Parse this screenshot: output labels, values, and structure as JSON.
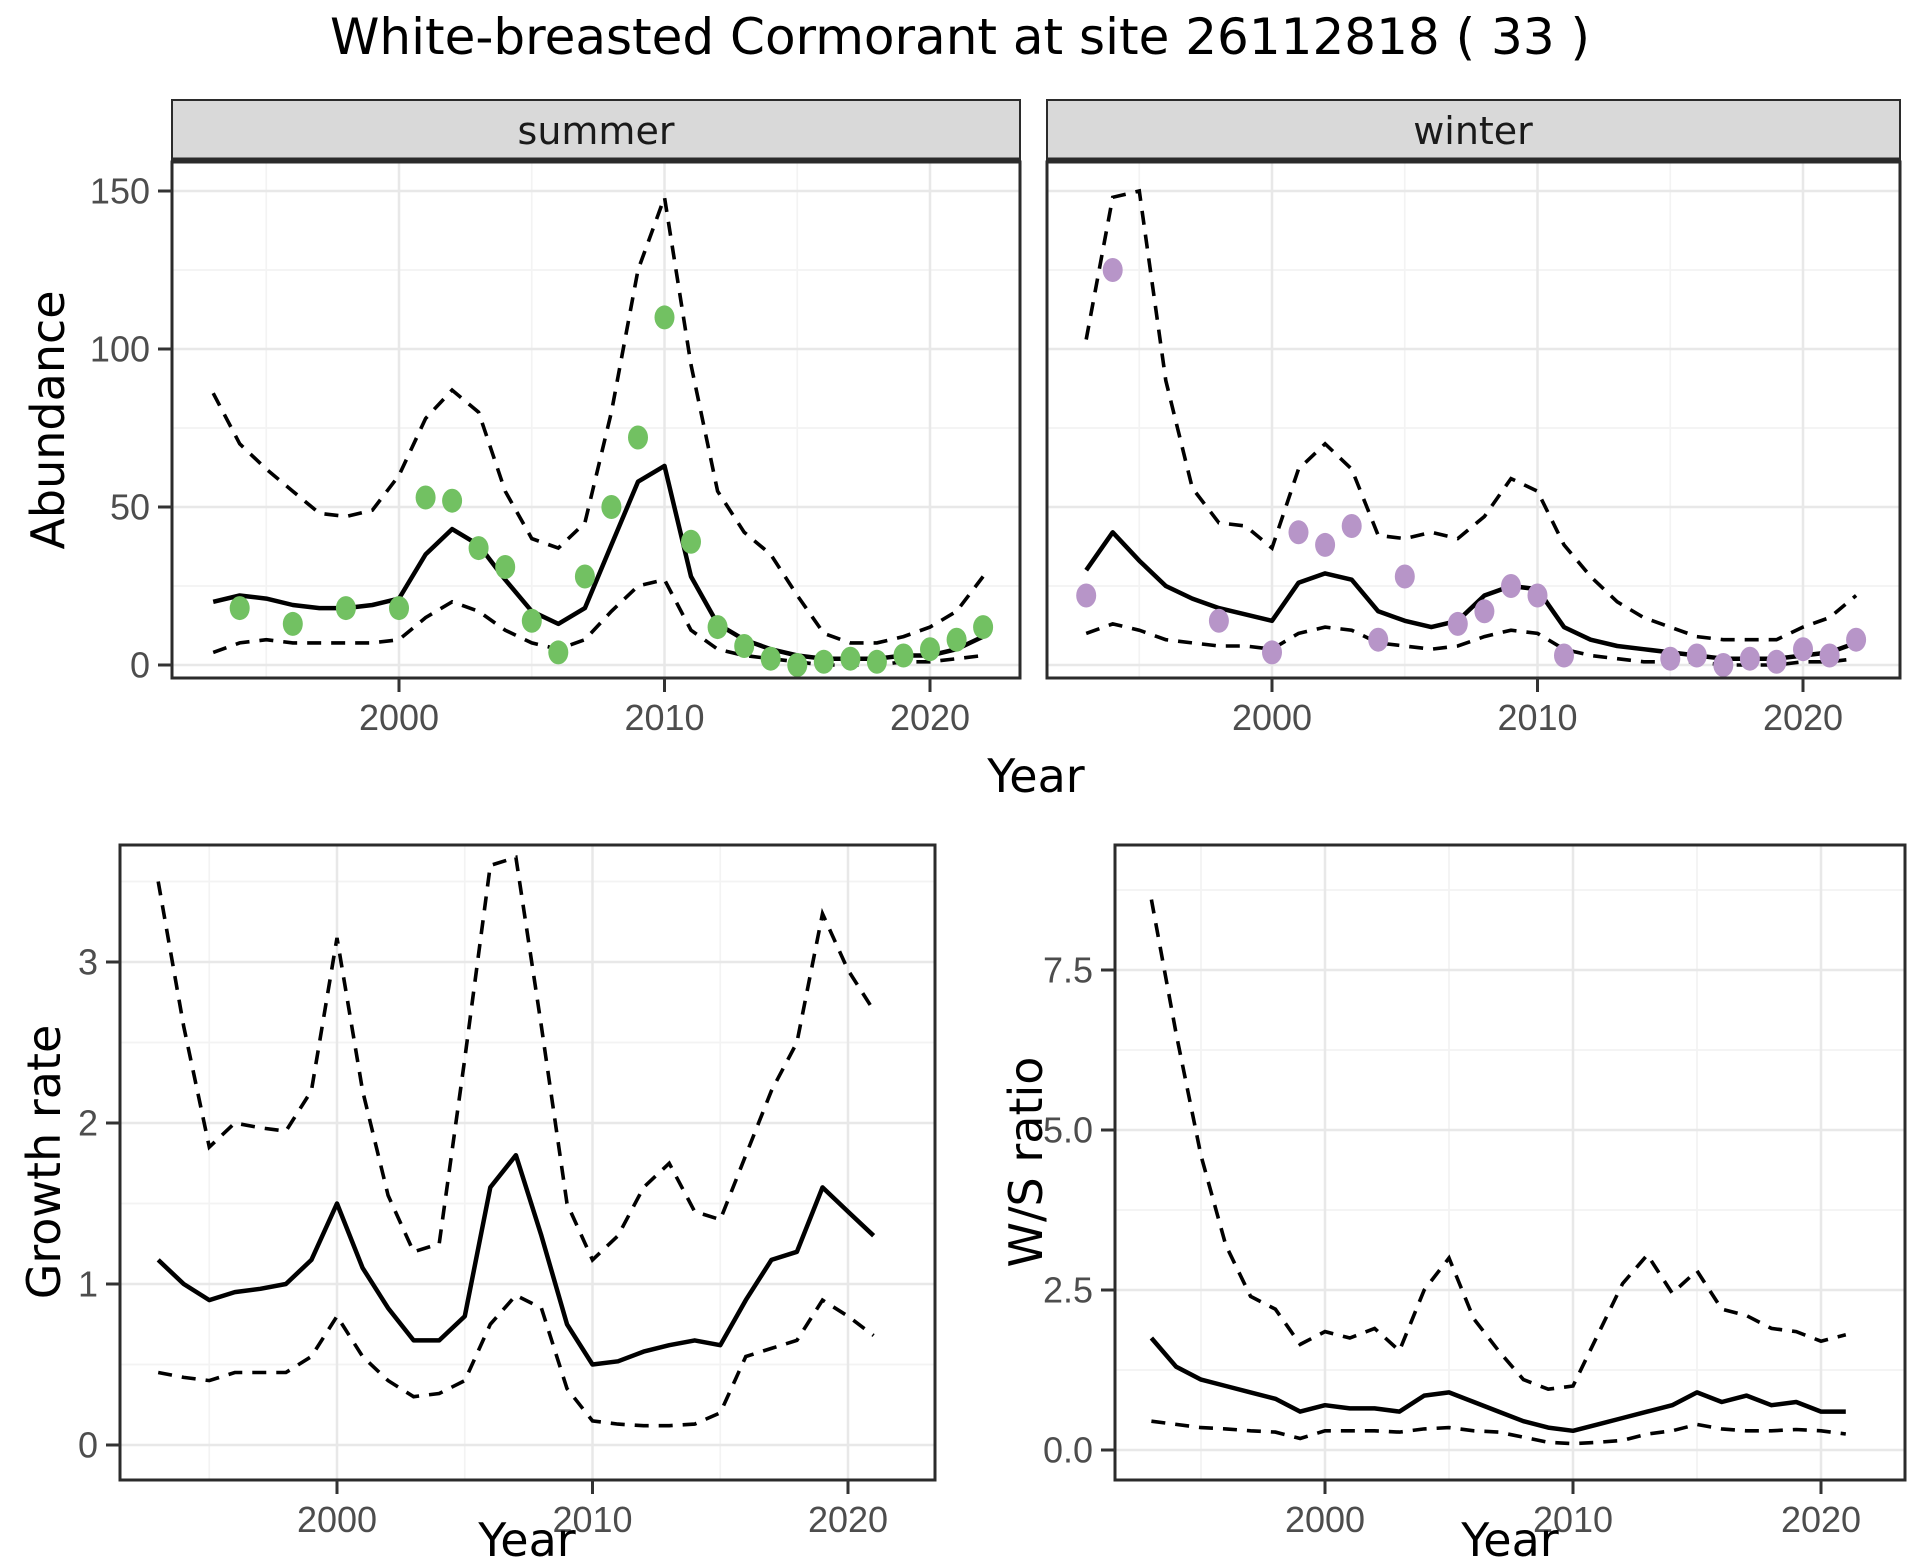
{
  "title": "White-breasted Cormorant at site 26112818 ( 33 )",
  "colors": {
    "fit_line": "#000000",
    "ci_line": "#000000",
    "summer_point": "#72c162",
    "winter_point": "#b795c8",
    "strip_bg": "#d9d9d9",
    "panel_border": "#2b2b2b",
    "grid_major": "#e8e8e8",
    "grid_minor": "#f3f3f3",
    "tick_text": "#4d4d4d",
    "background": "#ffffff"
  },
  "chart_data": [
    {
      "id": "abundance-summer",
      "type": "line+scatter",
      "facet_label": "summer",
      "ylabel": "Abundance",
      "xlabel": "Year",
      "xticks": [
        2000,
        2010,
        2020
      ],
      "yticks": [
        0,
        50,
        100,
        150
      ],
      "ytick_labels": [
        "0",
        "50",
        "100",
        "150"
      ],
      "xlim": [
        1991.5,
        2023.4
      ],
      "ylim": [
        -4,
        159
      ],
      "grid": true,
      "legend": "none",
      "x_years": [
        1993,
        1994,
        1995,
        1996,
        1997,
        1998,
        1999,
        2000,
        2001,
        2002,
        2003,
        2004,
        2005,
        2006,
        2007,
        2008,
        2009,
        2010,
        2011,
        2012,
        2013,
        2014,
        2015,
        2016,
        2017,
        2018,
        2019,
        2020,
        2021,
        2022
      ],
      "fit": [
        20,
        22,
        21,
        19,
        18,
        18,
        19,
        21,
        35,
        43,
        38,
        27,
        17,
        13,
        18,
        38,
        58,
        63,
        28,
        13,
        8,
        5,
        3,
        2,
        2,
        2,
        3,
        3,
        5,
        9
      ],
      "upper_ci": [
        86,
        70,
        62,
        55,
        48,
        47,
        49,
        60,
        78,
        87,
        80,
        55,
        40,
        37,
        45,
        80,
        125,
        148,
        95,
        55,
        42,
        35,
        22,
        10,
        7,
        7,
        9,
        12,
        17,
        28
      ],
      "lower_ci": [
        4,
        7,
        8,
        7,
        7,
        7,
        7,
        8,
        15,
        20,
        17,
        11,
        7,
        5,
        8,
        17,
        25,
        27,
        11,
        5,
        3,
        2,
        1,
        0,
        0,
        0,
        1,
        1,
        2,
        3
      ],
      "obs": {
        "years": [
          1994,
          1996,
          1998,
          2000,
          2001,
          2002,
          2003,
          2004,
          2005,
          2006,
          2007,
          2008,
          2009,
          2010,
          2011,
          2012,
          2013,
          2014,
          2015,
          2016,
          2017,
          2018,
          2019,
          2020,
          2021,
          2022
        ],
        "values": [
          18,
          13,
          18,
          18,
          53,
          52,
          37,
          31,
          14,
          4,
          28,
          50,
          72,
          110,
          39,
          12,
          6,
          2,
          0,
          1,
          2,
          1,
          3,
          5,
          8,
          12
        ]
      },
      "point_color": "#72c162",
      "line_styles": {
        "fit": "solid",
        "ci": "dashed"
      }
    },
    {
      "id": "abundance-winter",
      "type": "line+scatter",
      "facet_label": "winter",
      "ylabel": "Abundance",
      "xlabel": "Year",
      "xticks": [
        2000,
        2010,
        2020
      ],
      "yticks": [
        0,
        50,
        100,
        150
      ],
      "ytick_labels": [
        "0",
        "50",
        "100",
        "150"
      ],
      "xlim": [
        1991.5,
        2023.6
      ],
      "ylim": [
        -4,
        159
      ],
      "grid": true,
      "legend": "none",
      "x_years": [
        1993,
        1994,
        1995,
        1996,
        1997,
        1998,
        1999,
        2000,
        2001,
        2002,
        2003,
        2004,
        2005,
        2006,
        2007,
        2008,
        2009,
        2010,
        2011,
        2012,
        2013,
        2014,
        2015,
        2016,
        2017,
        2018,
        2019,
        2020,
        2021,
        2022
      ],
      "fit": [
        30,
        42,
        33,
        25,
        21,
        18,
        16,
        14,
        26,
        29,
        27,
        17,
        14,
        12,
        14,
        22,
        25,
        24,
        12,
        8,
        6,
        5,
        4,
        3,
        2,
        2,
        2,
        3,
        4,
        7
      ],
      "upper_ci": [
        103,
        148,
        150,
        90,
        56,
        45,
        44,
        37,
        62,
        70,
        62,
        41,
        40,
        42,
        40,
        47,
        59,
        55,
        38,
        28,
        20,
        15,
        12,
        9,
        8,
        8,
        8,
        12,
        15,
        22
      ],
      "lower_ci": [
        10,
        13,
        11,
        8,
        7,
        6,
        6,
        5,
        10,
        12,
        11,
        7,
        6,
        5,
        6,
        9,
        11,
        10,
        5,
        3,
        2,
        1,
        1,
        1,
        0,
        0,
        0,
        1,
        1,
        2
      ],
      "obs": {
        "years": [
          1993,
          1994,
          1998,
          2000,
          2001,
          2002,
          2003,
          2004,
          2005,
          2007,
          2008,
          2009,
          2010,
          2011,
          2015,
          2016,
          2017,
          2018,
          2019,
          2020,
          2021,
          2022
        ],
        "values": [
          22,
          125,
          14,
          4,
          42,
          38,
          44,
          8,
          28,
          13,
          17,
          25,
          22,
          3,
          2,
          3,
          0,
          2,
          1,
          5,
          3,
          8
        ]
      },
      "point_color": "#b795c8",
      "line_styles": {
        "fit": "solid",
        "ci": "dashed"
      }
    },
    {
      "id": "growth-rate",
      "type": "line",
      "facet_label": "",
      "ylabel": "Growth rate",
      "xlabel": "Year",
      "xticks": [
        2000,
        2010,
        2020
      ],
      "yticks": [
        0,
        1,
        2,
        3
      ],
      "ytick_labels": [
        "0",
        "1",
        "2",
        "3"
      ],
      "xlim": [
        1991.5,
        2023.4
      ],
      "ylim": [
        -0.2,
        3.7
      ],
      "grid": true,
      "legend": "none",
      "x_years": [
        1993,
        1994,
        1995,
        1996,
        1997,
        1998,
        1999,
        2000,
        2001,
        2002,
        2003,
        2004,
        2005,
        2006,
        2007,
        2008,
        2009,
        2010,
        2011,
        2012,
        2013,
        2014,
        2015,
        2016,
        2017,
        2018,
        2019,
        2020,
        2021
      ],
      "fit": [
        1.15,
        1.0,
        0.9,
        0.95,
        0.97,
        1.0,
        1.15,
        1.5,
        1.1,
        0.85,
        0.65,
        0.65,
        0.8,
        1.6,
        1.8,
        1.3,
        0.75,
        0.5,
        0.52,
        0.58,
        0.62,
        0.65,
        0.62,
        0.9,
        1.15,
        1.2,
        1.6,
        1.45,
        1.3
      ],
      "upper_ci": [
        3.5,
        2.6,
        1.85,
        2.0,
        1.97,
        1.95,
        2.2,
        3.15,
        2.2,
        1.55,
        1.2,
        1.25,
        2.4,
        3.6,
        3.65,
        2.6,
        1.5,
        1.15,
        1.3,
        1.6,
        1.75,
        1.45,
        1.4,
        1.8,
        2.2,
        2.5,
        3.3,
        2.95,
        2.7
      ],
      "lower_ci": [
        0.45,
        0.42,
        0.4,
        0.45,
        0.45,
        0.45,
        0.55,
        0.8,
        0.55,
        0.4,
        0.3,
        0.32,
        0.4,
        0.75,
        0.93,
        0.85,
        0.35,
        0.15,
        0.13,
        0.12,
        0.12,
        0.13,
        0.2,
        0.55,
        0.6,
        0.65,
        0.9,
        0.8,
        0.68
      ],
      "line_styles": {
        "fit": "solid",
        "ci": "dashed"
      }
    },
    {
      "id": "ws-ratio",
      "type": "line",
      "facet_label": "",
      "ylabel": "W/S ratio",
      "xlabel": "Year",
      "xticks": [
        2000,
        2010,
        2020
      ],
      "yticks": [
        0,
        2.5,
        5,
        7.5
      ],
      "ytick_labels": [
        "0.0",
        "2.5",
        "5.0",
        "7.5"
      ],
      "xlim": [
        1991.5,
        2023.4
      ],
      "ylim": [
        -0.45,
        9.4
      ],
      "grid": true,
      "legend": "none",
      "x_years": [
        1993,
        1994,
        1995,
        1996,
        1997,
        1998,
        1999,
        2000,
        2001,
        2002,
        2003,
        2004,
        2005,
        2006,
        2007,
        2008,
        2009,
        2010,
        2011,
        2012,
        2013,
        2014,
        2015,
        2016,
        2017,
        2018,
        2019,
        2020,
        2021
      ],
      "fit": [
        1.75,
        1.3,
        1.1,
        1.0,
        0.9,
        0.8,
        0.6,
        0.7,
        0.65,
        0.65,
        0.6,
        0.85,
        0.9,
        0.75,
        0.6,
        0.45,
        0.35,
        0.3,
        0.4,
        0.5,
        0.6,
        0.7,
        0.9,
        0.75,
        0.85,
        0.7,
        0.75,
        0.6,
        0.6
      ],
      "upper_ci": [
        8.6,
        6.5,
        4.6,
        3.2,
        2.4,
        2.2,
        1.65,
        1.85,
        1.75,
        1.9,
        1.55,
        2.5,
        3.0,
        2.05,
        1.55,
        1.1,
        0.95,
        1.0,
        1.8,
        2.6,
        3.05,
        2.45,
        2.8,
        2.2,
        2.1,
        1.9,
        1.85,
        1.7,
        1.8
      ],
      "lower_ci": [
        0.45,
        0.4,
        0.35,
        0.33,
        0.3,
        0.28,
        0.18,
        0.3,
        0.3,
        0.3,
        0.28,
        0.33,
        0.35,
        0.3,
        0.28,
        0.2,
        0.12,
        0.1,
        0.12,
        0.15,
        0.25,
        0.3,
        0.4,
        0.33,
        0.3,
        0.3,
        0.32,
        0.3,
        0.25
      ],
      "line_styles": {
        "fit": "solid",
        "ci": "dashed"
      }
    }
  ]
}
